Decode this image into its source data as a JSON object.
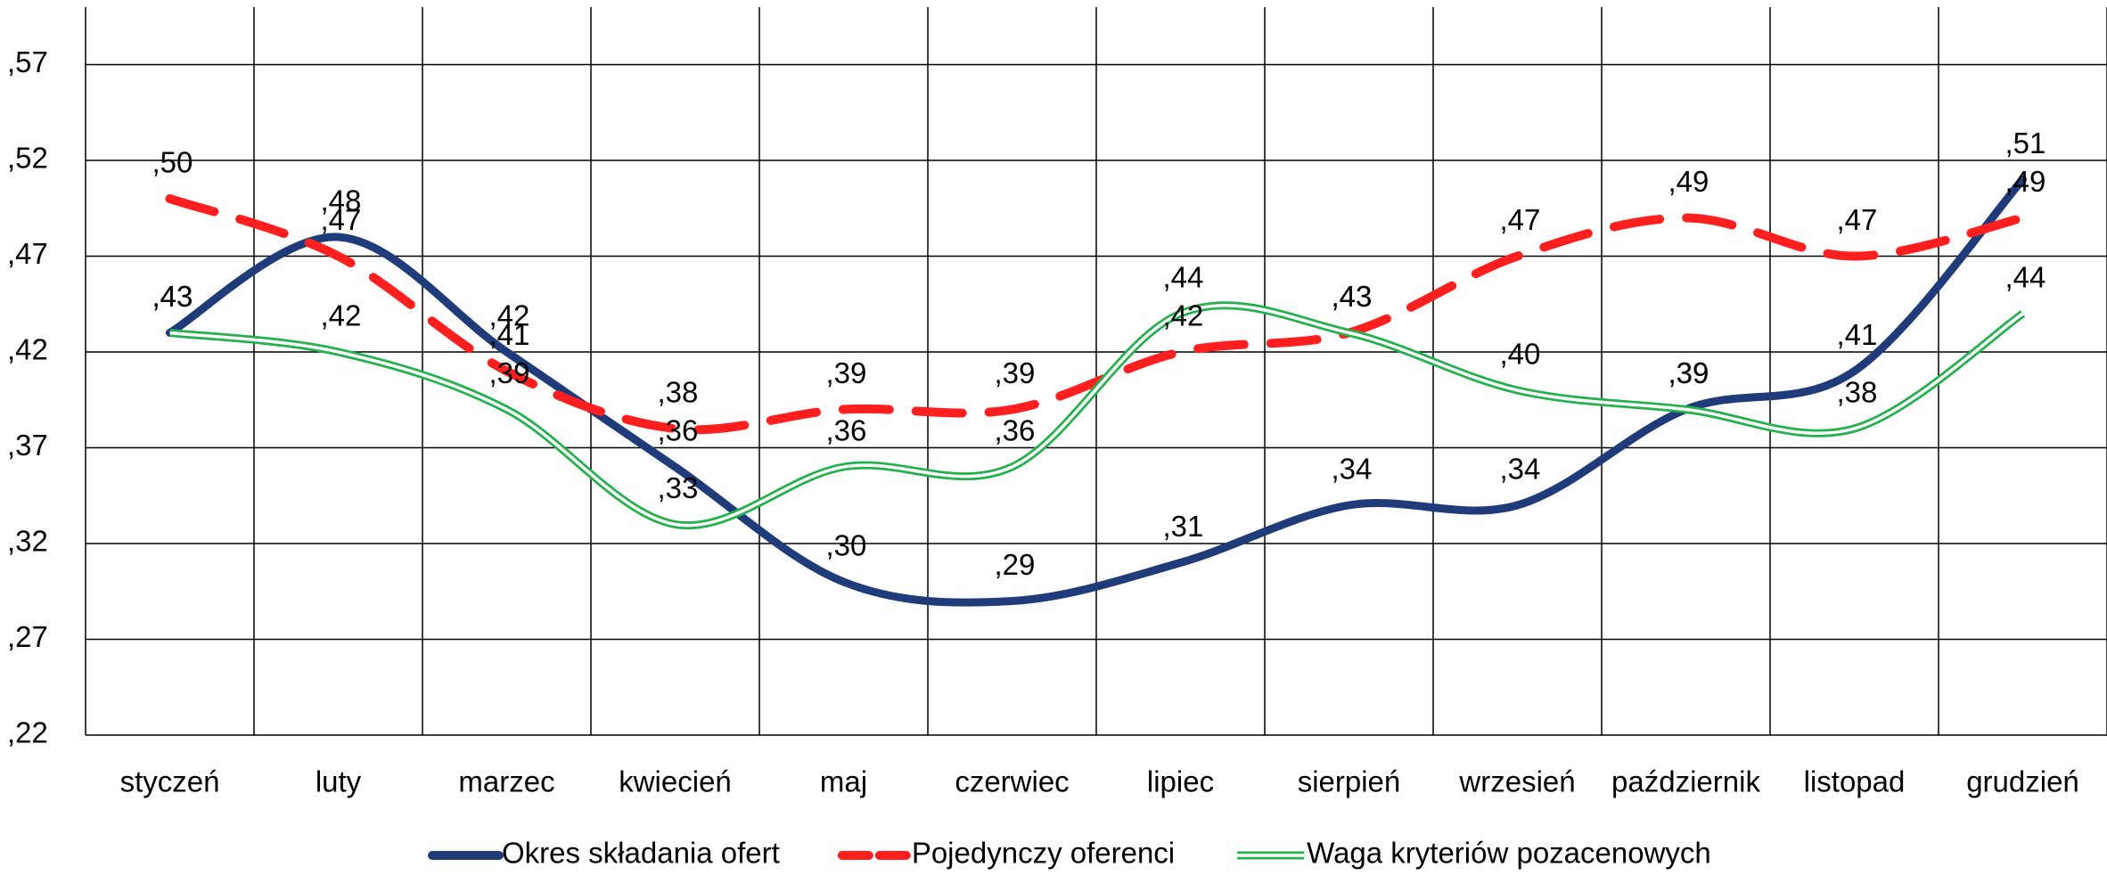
{
  "chart_data": {
    "type": "line",
    "categories": [
      "styczeń",
      "luty",
      "marzec",
      "kwiecień",
      "maj",
      "czerwiec",
      "lipiec",
      "sierpień",
      "wrzesień",
      "październik",
      "listopad",
      "grudzień"
    ],
    "series": [
      {
        "name": "Okres składania ofert",
        "color": "#1f3b7a",
        "style": "solid",
        "values": [
          0.43,
          0.48,
          0.42,
          0.36,
          0.3,
          0.29,
          0.31,
          0.34,
          0.34,
          0.39,
          0.41,
          0.51
        ],
        "value_labels": [
          ",43",
          ",48",
          ",42",
          ",36",
          ",30",
          ",29",
          ",31",
          ",34",
          ",34",
          ",39",
          ",41",
          ",51"
        ]
      },
      {
        "name": "Pojedynczy oferenci",
        "color": "#ff1f1f",
        "style": "dashed",
        "values": [
          0.5,
          0.47,
          0.41,
          0.38,
          0.39,
          0.39,
          0.42,
          0.43,
          0.47,
          0.49,
          0.47,
          0.49
        ],
        "value_labels": [
          ",50",
          ",47",
          ",41",
          ",38",
          ",39",
          ",39",
          ",42",
          ",43",
          ",47",
          ",49",
          ",47",
          ",49"
        ]
      },
      {
        "name": "Waga kryteriów pozacenowych",
        "color": "#22b14c",
        "style": "double",
        "values": [
          0.43,
          0.42,
          0.39,
          0.33,
          0.36,
          0.36,
          0.44,
          0.43,
          0.4,
          0.39,
          0.38,
          0.44
        ],
        "value_labels": [
          ",43",
          ",42",
          ",39",
          ",33",
          ",36",
          ",36",
          ",44",
          ",43",
          ",40",
          ",39",
          ",38",
          ",44"
        ]
      }
    ],
    "ylim": [
      0.22,
      0.6
    ],
    "yticks": [
      {
        "value": 0.22,
        "label": ",22"
      },
      {
        "value": 0.27,
        "label": ",27"
      },
      {
        "value": 0.32,
        "label": ",32"
      },
      {
        "value": 0.37,
        "label": ",37"
      },
      {
        "value": 0.42,
        "label": ",42"
      },
      {
        "value": 0.47,
        "label": ",47"
      },
      {
        "value": 0.52,
        "label": ",52"
      },
      {
        "value": 0.57,
        "label": ",57"
      }
    ],
    "grid": true,
    "legend": "bottom",
    "smooth": true
  }
}
